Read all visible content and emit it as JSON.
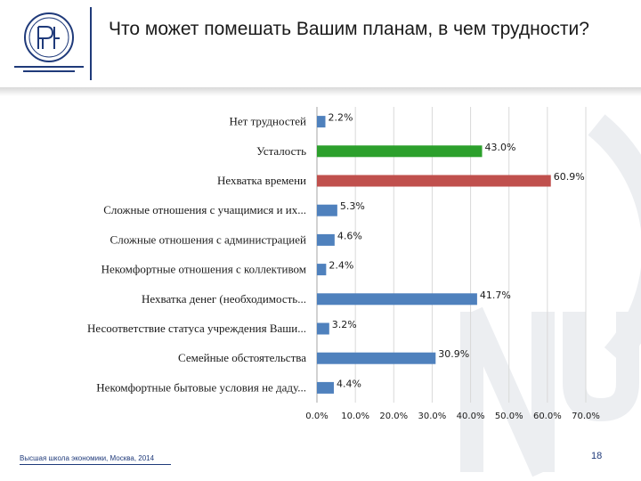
{
  "header": {
    "title": "Что может помешать Вашим планам, в чем трудности?"
  },
  "colors": {
    "brand": "#1f3a7a",
    "bar_default": "#4f81bd",
    "bar_highlight_green": "#2ca02c",
    "bar_highlight_red": "#c0504d"
  },
  "logo": {
    "icon": "hse-logo-icon"
  },
  "chart_data": {
    "type": "bar",
    "orientation": "horizontal",
    "title": "",
    "xlabel": "",
    "ylabel": "",
    "categories": [
      "Нет трудностей",
      "Усталость",
      "Нехватка времени",
      "Сложные отношения с учащимися и их...",
      "Сложные отношения с администрацией",
      "Некомфортные отношения с коллективом",
      "Нехватка денег (необходимость...",
      "Несоответствие статуса учреждения Ваши...",
      "Семейные обстоятельства",
      "Некомфортные  бытовые условия  не даду..."
    ],
    "values": [
      2.2,
      43.0,
      60.9,
      5.3,
      4.6,
      2.4,
      41.7,
      3.2,
      30.9,
      4.4
    ],
    "value_labels": [
      "2.2%",
      "43.0%",
      "60.9%",
      "5.3%",
      "4.6%",
      "2.4%",
      "41.7%",
      "3.2%",
      "30.9%",
      "4.4%"
    ],
    "bar_colors": [
      "#4f81bd",
      "#2ca02c",
      "#c0504d",
      "#4f81bd",
      "#4f81bd",
      "#4f81bd",
      "#4f81bd",
      "#4f81bd",
      "#4f81bd",
      "#4f81bd"
    ],
    "xlim": [
      0,
      70
    ],
    "x_ticks": [
      0,
      10,
      20,
      30,
      40,
      50,
      60,
      70
    ],
    "x_tick_labels": [
      "0.0%",
      "10.0%",
      "20.0%",
      "30.0%",
      "40.0%",
      "50.0%",
      "60.0%",
      "70.0%"
    ],
    "grid": true
  },
  "footer": {
    "text": "Высшая школа экономики, Москва, 2014",
    "page_number": "18"
  }
}
